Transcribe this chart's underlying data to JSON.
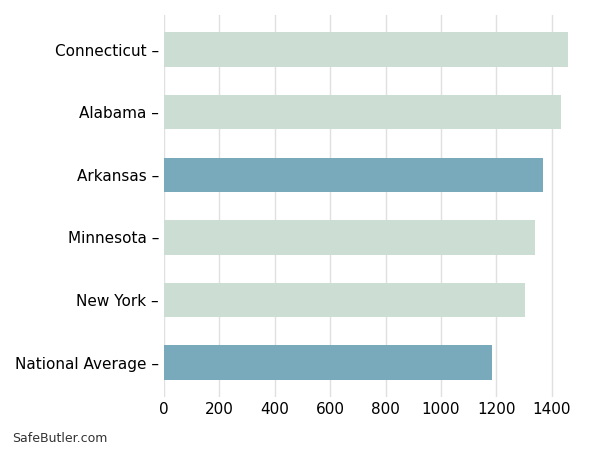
{
  "categories": [
    "National Average",
    "New York",
    "Minnesota",
    "Arkansas",
    "Alabama",
    "Connecticut"
  ],
  "values": [
    1185,
    1305,
    1340,
    1370,
    1435,
    1460
  ],
  "bar_colors": [
    "#79aabb",
    "#ccddd4",
    "#ccddd4",
    "#79aabb",
    "#ccddd4",
    "#ccddd4"
  ],
  "xlim": [
    0,
    1520
  ],
  "xticks": [
    0,
    200,
    400,
    600,
    800,
    1000,
    1200,
    1400
  ],
  "background_color": "#ffffff",
  "axes_bg_color": "#ffffff",
  "grid_color": "#e0e0e0",
  "bar_height": 0.55,
  "font_size": 11,
  "label_suffix": " –",
  "watermark": "SafeButler.com"
}
